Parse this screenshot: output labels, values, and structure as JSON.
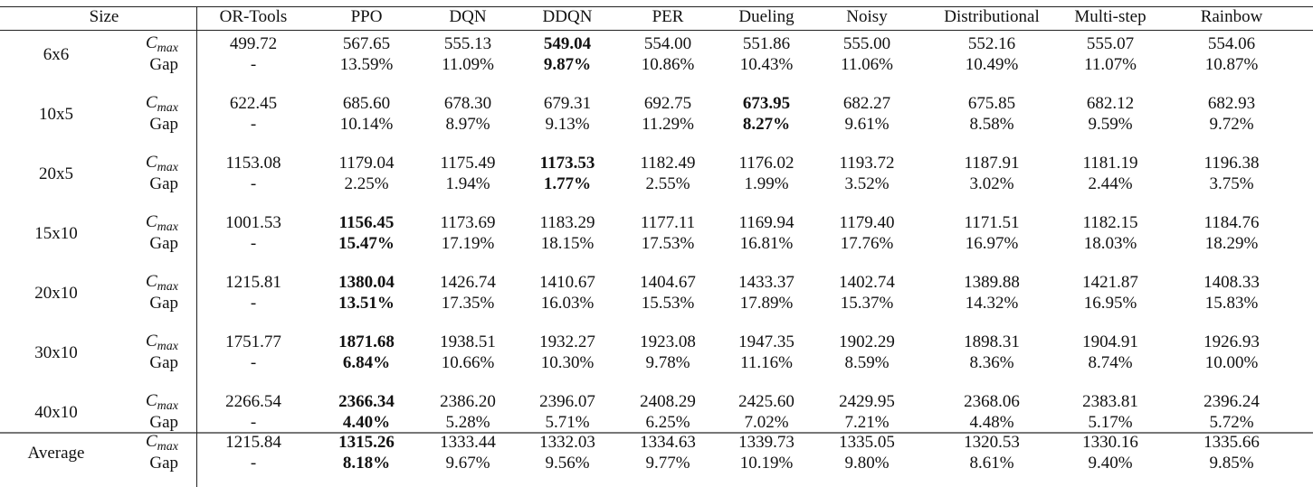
{
  "header": {
    "size_label": "Size",
    "methods": [
      "OR-Tools",
      "PPO",
      "DQN",
      "DDQN",
      "PER",
      "Dueling",
      "Noisy",
      "Distributional",
      "Multi-step",
      "Rainbow"
    ]
  },
  "row_labels": {
    "cmax_base": "C",
    "cmax_sub": "max",
    "gap": "Gap"
  },
  "rows": [
    {
      "size": "6x6",
      "best": "DDQN",
      "cmax": [
        "499.72",
        "567.65",
        "555.13",
        "549.04",
        "554.00",
        "551.86",
        "555.00",
        "552.16",
        "555.07",
        "554.06"
      ],
      "gap": [
        "-",
        "13.59%",
        "11.09%",
        "9.87%",
        "10.86%",
        "10.43%",
        "11.06%",
        "10.49%",
        "11.07%",
        "10.87%"
      ]
    },
    {
      "size": "10x5",
      "best": "Dueling",
      "cmax": [
        "622.45",
        "685.60",
        "678.30",
        "679.31",
        "692.75",
        "673.95",
        "682.27",
        "675.85",
        "682.12",
        "682.93"
      ],
      "gap": [
        "-",
        "10.14%",
        "8.97%",
        "9.13%",
        "11.29%",
        "8.27%",
        "9.61%",
        "8.58%",
        "9.59%",
        "9.72%"
      ]
    },
    {
      "size": "20x5",
      "best": "DDQN",
      "cmax": [
        "1153.08",
        "1179.04",
        "1175.49",
        "1173.53",
        "1182.49",
        "1176.02",
        "1193.72",
        "1187.91",
        "1181.19",
        "1196.38"
      ],
      "gap": [
        "-",
        "2.25%",
        "1.94%",
        "1.77%",
        "2.55%",
        "1.99%",
        "3.52%",
        "3.02%",
        "2.44%",
        "3.75%"
      ]
    },
    {
      "size": "15x10",
      "best": "PPO",
      "cmax": [
        "1001.53",
        "1156.45",
        "1173.69",
        "1183.29",
        "1177.11",
        "1169.94",
        "1179.40",
        "1171.51",
        "1182.15",
        "1184.76"
      ],
      "gap": [
        "-",
        "15.47%",
        "17.19%",
        "18.15%",
        "17.53%",
        "16.81%",
        "17.76%",
        "16.97%",
        "18.03%",
        "18.29%"
      ]
    },
    {
      "size": "20x10",
      "best": "PPO",
      "cmax": [
        "1215.81",
        "1380.04",
        "1426.74",
        "1410.67",
        "1404.67",
        "1433.37",
        "1402.74",
        "1389.88",
        "1421.87",
        "1408.33"
      ],
      "gap": [
        "-",
        "13.51%",
        "17.35%",
        "16.03%",
        "15.53%",
        "17.89%",
        "15.37%",
        "14.32%",
        "16.95%",
        "15.83%"
      ]
    },
    {
      "size": "30x10",
      "best": "PPO",
      "cmax": [
        "1751.77",
        "1871.68",
        "1938.51",
        "1932.27",
        "1923.08",
        "1947.35",
        "1902.29",
        "1898.31",
        "1904.91",
        "1926.93"
      ],
      "gap": [
        "-",
        "6.84%",
        "10.66%",
        "10.30%",
        "9.78%",
        "11.16%",
        "8.59%",
        "8.36%",
        "8.74%",
        "10.00%"
      ]
    },
    {
      "size": "40x10",
      "best": "PPO",
      "cmax": [
        "2266.54",
        "2366.34",
        "2386.20",
        "2396.07",
        "2408.29",
        "2425.60",
        "2429.95",
        "2368.06",
        "2383.81",
        "2396.24"
      ],
      "gap": [
        "-",
        "4.40%",
        "5.28%",
        "5.71%",
        "6.25%",
        "7.02%",
        "7.21%",
        "4.48%",
        "5.17%",
        "5.72%"
      ]
    },
    {
      "size": "Average",
      "best": "PPO",
      "cmax": [
        "1215.84",
        "1315.26",
        "1333.44",
        "1332.03",
        "1334.63",
        "1339.73",
        "1335.05",
        "1320.53",
        "1330.16",
        "1335.66"
      ],
      "gap": [
        "-",
        "8.18%",
        "9.67%",
        "9.56%",
        "9.77%",
        "10.19%",
        "9.80%",
        "8.61%",
        "9.40%",
        "9.85%"
      ]
    }
  ]
}
